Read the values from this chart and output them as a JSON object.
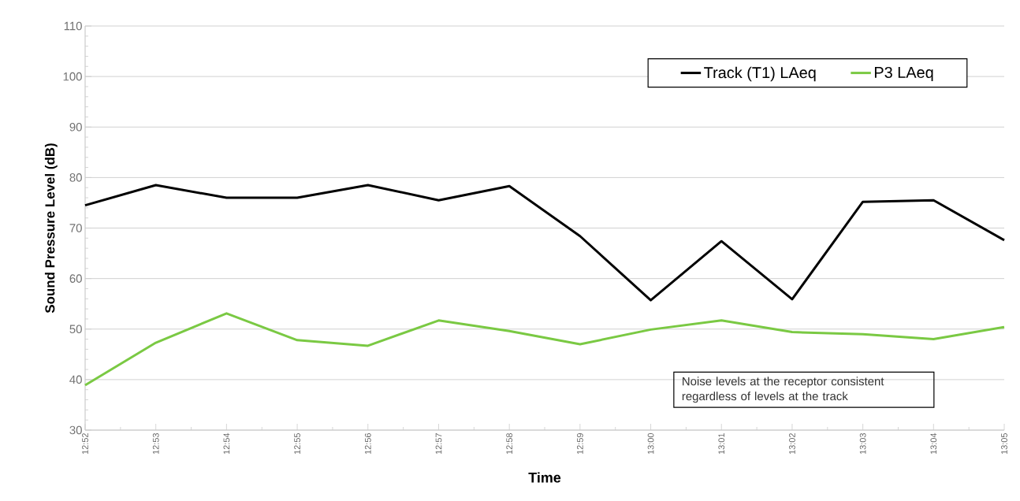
{
  "chart_data": {
    "type": "line",
    "xlabel": "Time",
    "ylabel": "Sound Pressure Level (dB)",
    "categories": [
      "12:52",
      "12:53",
      "12:54",
      "12:55",
      "12:56",
      "12:57",
      "12:58",
      "12:59",
      "13:00",
      "13:01",
      "13:02",
      "13:03",
      "13:04",
      "13:05"
    ],
    "series": [
      {
        "name": "Track (T1) LAeq",
        "color": "#000000",
        "values": [
          74.5,
          78.5,
          76,
          76,
          78.5,
          75.5,
          78.3,
          68.4,
          55.7,
          67.4,
          55.9,
          75.2,
          75.5,
          67.6
        ]
      },
      {
        "name": "P3 LAeq",
        "color": "#7ac943",
        "values": [
          38.9,
          47.3,
          53.1,
          47.8,
          46.7,
          51.7,
          49.6,
          47.0,
          49.9,
          51.7,
          49.4,
          49.0,
          48.0,
          50.4
        ]
      }
    ],
    "ylim": [
      30,
      110
    ],
    "yticks": [
      30,
      40,
      50,
      60,
      70,
      80,
      90,
      100,
      110
    ],
    "grid": "y",
    "legend": "top right",
    "marker": "none",
    "line_style": "solid",
    "annotations": [
      "Noise levels at the receptor consistent regardless of levels at the track"
    ]
  }
}
